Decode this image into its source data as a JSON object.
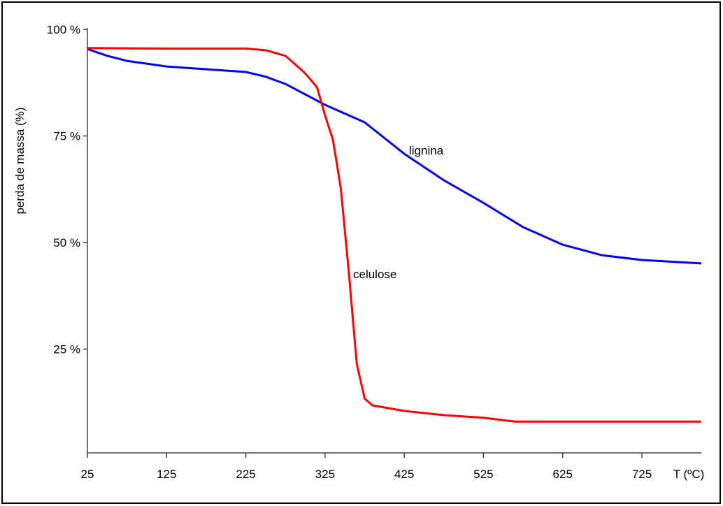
{
  "chart_data": {
    "type": "line",
    "x_label": "T (ºC)",
    "y_label": "perda de massa (%)",
    "xlim": [
      25,
      800
    ],
    "ylim": [
      0,
      100
    ],
    "xticks": [
      25,
      125,
      225,
      325,
      425,
      525,
      625,
      725
    ],
    "yticks": [
      {
        "value": 25,
        "label": "25 %"
      },
      {
        "value": 50,
        "label": "50 %"
      },
      {
        "value": 75,
        "label": "75 %"
      },
      {
        "value": 100,
        "label": "100 %"
      }
    ],
    "series": [
      {
        "name": "lignina",
        "color": "#0000ff",
        "x": [
          25,
          50,
          75,
          125,
          225,
          250,
          275,
          325,
          375,
          425,
          475,
          525,
          575,
          625,
          675,
          725,
          800
        ],
        "values": [
          95.4,
          93.8,
          92.6,
          91.3,
          90,
          88.9,
          87.2,
          82.3,
          78.2,
          70.8,
          64.6,
          59.3,
          53.6,
          49.5,
          47,
          45.9,
          45.1
        ]
      },
      {
        "name": "celulose",
        "color": "#ff0000",
        "x": [
          25,
          125,
          225,
          250,
          275,
          300,
          315,
          325,
          335,
          345,
          355,
          365,
          375,
          385,
          425,
          475,
          525,
          565,
          800
        ],
        "values": [
          95.6,
          95.5,
          95.5,
          95.1,
          93.8,
          89.7,
          86.4,
          79.8,
          74.1,
          62.6,
          43,
          21.6,
          13.4,
          11.8,
          10.5,
          9.5,
          8.9,
          8,
          8
        ]
      }
    ]
  }
}
